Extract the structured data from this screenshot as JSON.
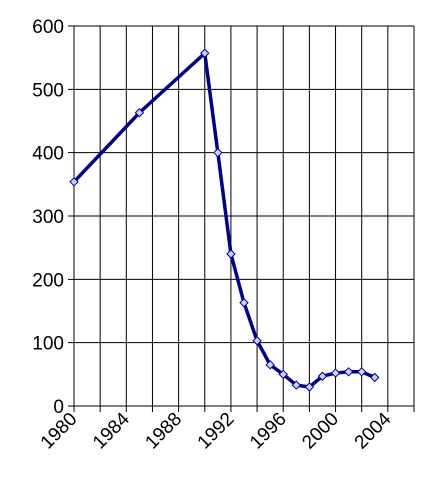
{
  "chart_data": {
    "type": "line",
    "x": [
      1980,
      1985,
      1990,
      1991,
      1992,
      1993,
      1994,
      1995,
      1996,
      1997,
      1998,
      1999,
      2000,
      2001,
      2002,
      2003
    ],
    "series": [
      {
        "color": "#000080",
        "values": [
          354,
          463,
          557,
          400,
          240,
          163,
          103,
          65,
          50,
          33,
          30,
          47,
          52,
          54,
          54,
          45
        ]
      }
    ],
    "xlim": [
      1980,
      2006
    ],
    "xticks": [
      1980,
      1984,
      1988,
      1992,
      1996,
      2000,
      2004
    ],
    "xminorticks": [
      1982,
      1986,
      1990,
      1994,
      1998,
      2002,
      2006
    ],
    "ylim": [
      0,
      600
    ],
    "yticks": [
      0,
      100,
      200,
      300,
      400,
      500,
      600
    ],
    "grid": true
  }
}
